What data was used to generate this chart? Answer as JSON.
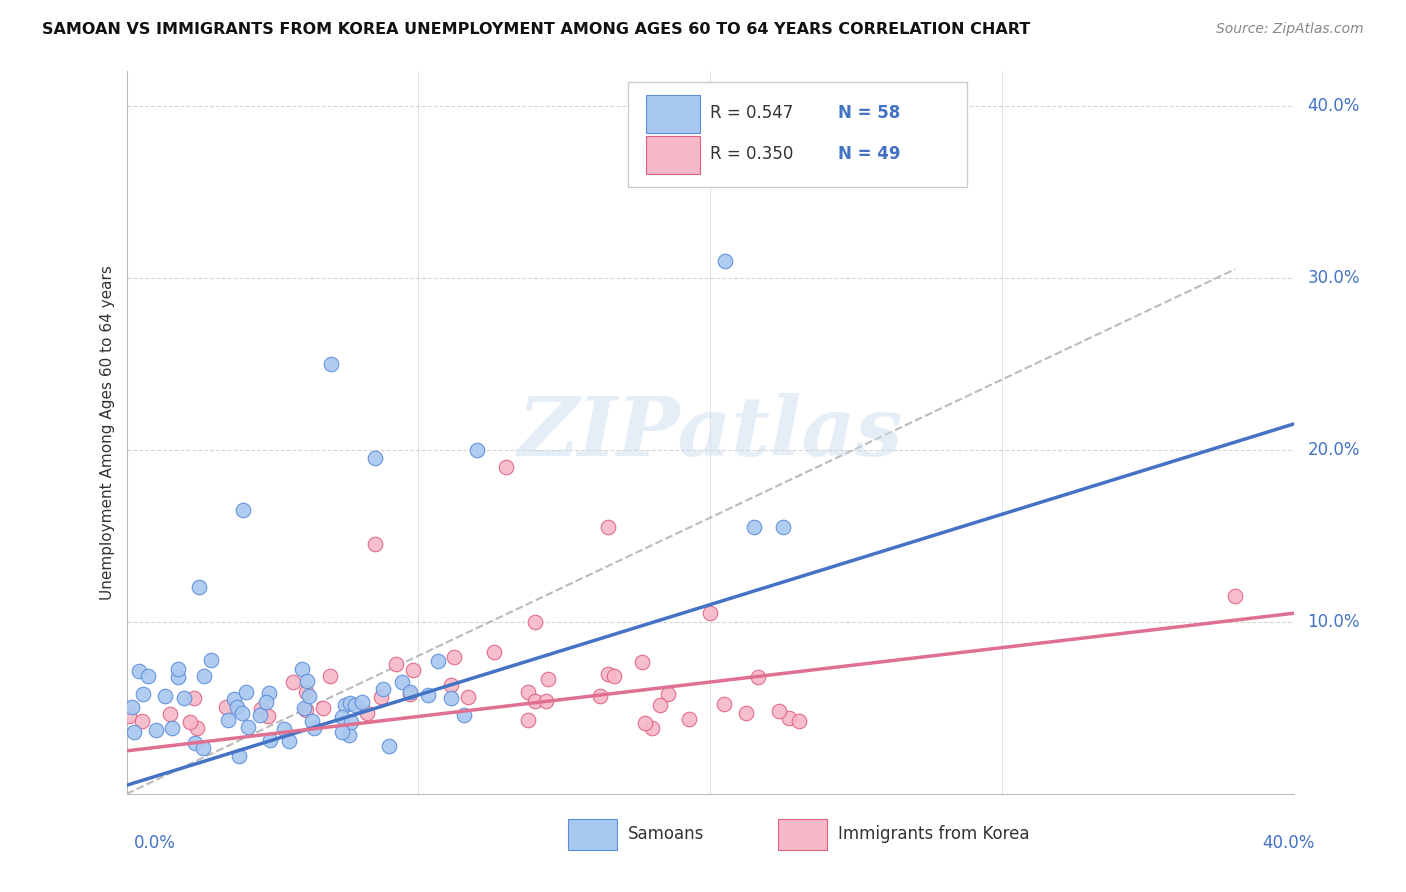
{
  "title": "SAMOAN VS IMMIGRANTS FROM KOREA UNEMPLOYMENT AMONG AGES 60 TO 64 YEARS CORRELATION CHART",
  "source": "Source: ZipAtlas.com",
  "ylabel": "Unemployment Among Ages 60 to 64 years",
  "R1": 0.547,
  "N1": 58,
  "R2": 0.35,
  "N2": 49,
  "legend_label1": "Samoans",
  "legend_label2": "Immigrants from Korea",
  "legend_R1": "R = 0.547",
  "legend_N1": "N = 58",
  "legend_R2": "R = 0.350",
  "legend_N2": "N = 49",
  "color_blue_fill": "#A8C8F0",
  "color_blue_edge": "#5B8DD9",
  "color_pink_fill": "#F7B8C8",
  "color_pink_edge": "#E06080",
  "color_blue_line": "#4472C4",
  "color_pink_line": "#E07090",
  "color_dashed": "#AAAAAA",
  "color_grid": "#CCCCCC",
  "color_axis_label": "#4472C4",
  "watermark_text": "ZIPatlas",
  "watermark_color": "#CCDDEE",
  "xlim": [
    0.0,
    0.4
  ],
  "ylim": [
    0.0,
    0.42
  ],
  "blue_line_x0": 0.0,
  "blue_line_y0": 0.005,
  "blue_line_x1": 0.4,
  "blue_line_y1": 0.215,
  "pink_line_x0": 0.0,
  "pink_line_y0": 0.025,
  "pink_line_x1": 0.4,
  "pink_line_y1": 0.105,
  "dash_line_x0": 0.0,
  "dash_line_y0": 0.0,
  "dash_line_x1": 0.38,
  "dash_line_y1": 0.305,
  "background_color": "#FFFFFF"
}
